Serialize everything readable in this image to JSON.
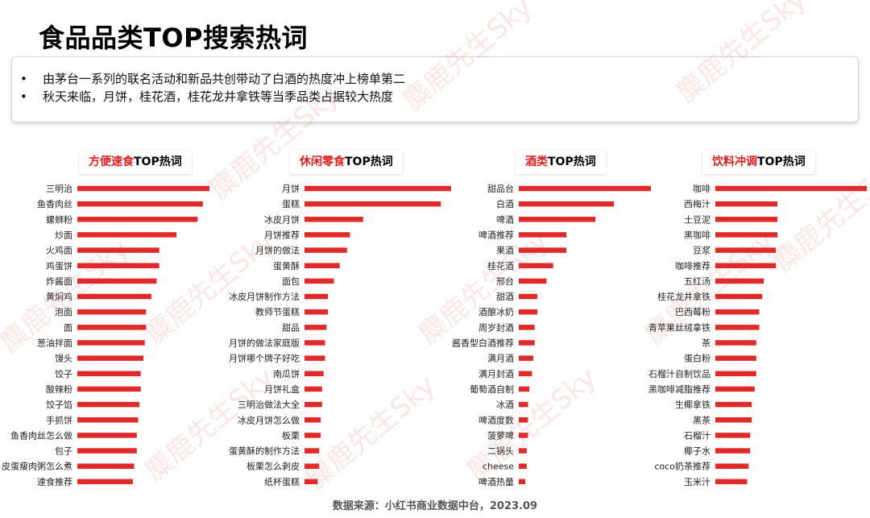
{
  "title": "食品品类TOP搜索热词",
  "summary": {
    "bullet": "•",
    "points": [
      "由茅台一系列的联名活动和新品共创带动了白酒的热度冲上榜单第二",
      "秋天来临，月饼，桂花酒，桂花龙井拿铁等当季品类占据较大热度"
    ]
  },
  "watermark": "麋鹿先生Sky",
  "source": "数据来源：小红书商业数据中台，2023.09",
  "colors": {
    "bar": "#e02a2a",
    "accent": "#e02020"
  },
  "chart_data": [
    {
      "type": "bar",
      "orientation": "horizontal",
      "title_red": "方便速食",
      "title_black": "TOP热词",
      "categories": [
        "三明治",
        "鱼香肉丝",
        "螺蛳粉",
        "炒面",
        "火鸡面",
        "鸡蛋饼",
        "炸酱面",
        "黄焖鸡",
        "泡面",
        "面",
        "葱油拌面",
        "馒头",
        "饺子",
        "酸辣粉",
        "饺子馅",
        "手抓饼",
        "鱼香肉丝怎么做",
        "包子",
        "皮蛋瘦肉粥怎么煮",
        "速食推荐"
      ],
      "values": [
        100,
        95,
        91,
        75,
        62,
        62,
        60,
        56,
        52,
        52,
        51,
        50,
        48,
        48,
        47,
        46,
        45,
        45,
        43,
        42
      ]
    },
    {
      "type": "bar",
      "orientation": "horizontal",
      "title_red": "休闲零食",
      "title_black": "TOP热词",
      "categories": [
        "月饼",
        "蛋糕",
        "冰皮月饼",
        "月饼推荐",
        "月饼的做法",
        "蛋黄酥",
        "面包",
        "冰皮月饼制作方法",
        "教师节蛋糕",
        "甜品",
        "月饼的做法家庭版",
        "月饼哪个牌子好吃",
        "南瓜饼",
        "月饼礼盒",
        "三明治做法大全",
        "冰皮月饼怎么做",
        "板栗",
        "蛋黄酥的制作方法",
        "板栗怎么剥皮",
        "纸杯蛋糕"
      ],
      "values": [
        100,
        93,
        40,
        31,
        29,
        24,
        20,
        16,
        16,
        15,
        14,
        14,
        13,
        12,
        12,
        11,
        11,
        10,
        10,
        9
      ]
    },
    {
      "type": "bar",
      "orientation": "horizontal",
      "title_red": "酒类",
      "title_black": "TOP热词",
      "categories": [
        "甜品台",
        "白酒",
        "啤酒",
        "啤酒推荐",
        "果酒",
        "桂花酒",
        "邢台",
        "甜酒",
        "酒酿冰奶",
        "周岁封酒",
        "酱香型白酒推荐",
        "满月酒",
        "满月封酒",
        "葡萄酒自制",
        "冰酒",
        "啤酒度数",
        "菠萝啤",
        "二锅头",
        "cheese",
        "啤酒热量"
      ],
      "values": [
        100,
        72,
        58,
        36,
        36,
        26,
        21,
        14,
        14,
        12,
        12,
        11,
        10,
        8,
        7,
        7,
        7,
        6,
        6,
        5
      ]
    },
    {
      "type": "bar",
      "orientation": "horizontal",
      "title_red": "饮料冲调",
      "title_black": "TOP热词",
      "categories": [
        "咖啡",
        "西梅汁",
        "土豆泥",
        "黑咖啡",
        "豆浆",
        "咖啡推荐",
        "五红汤",
        "桂花龙井拿铁",
        "巴西莓粉",
        "青苹果丝绒拿铁",
        "茶",
        "蛋白粉",
        "石榴汁自制饮品",
        "黑咖啡减脂推荐",
        "生椰拿铁",
        "黑茶",
        "石榴汁",
        "椰子水",
        "coco奶茶推荐",
        "玉米汁"
      ],
      "values": [
        100,
        41,
        41,
        41,
        40,
        40,
        32,
        31,
        29,
        29,
        27,
        27,
        27,
        26,
        24,
        24,
        23,
        23,
        22,
        21
      ]
    }
  ]
}
